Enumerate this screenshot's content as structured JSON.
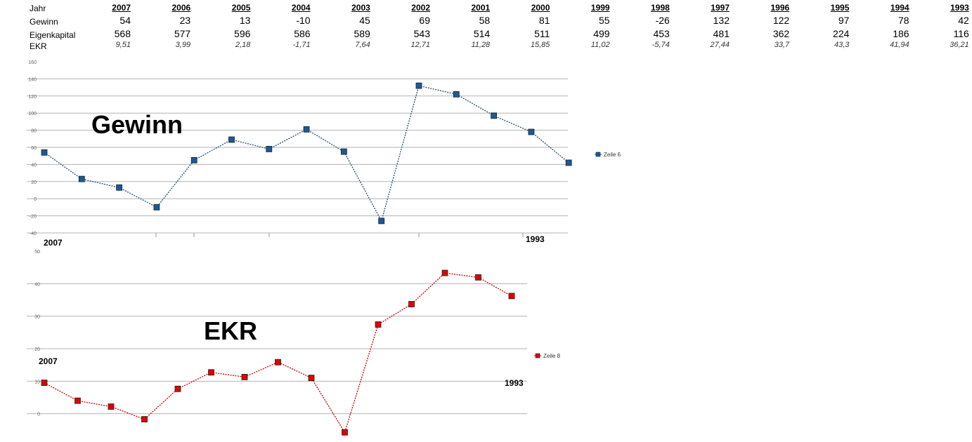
{
  "table": {
    "label_year": "Jahr",
    "label_profit": "Gewinn",
    "label_equity": "Eigenkapital",
    "label_ekr": "EKR",
    "years": [
      "2007",
      "2006",
      "2005",
      "2004",
      "2003",
      "2002",
      "2001",
      "2000",
      "1999",
      "1998",
      "1997",
      "1996",
      "1995",
      "1994",
      "1993"
    ],
    "profit": [
      "54",
      "23",
      "13",
      "-10",
      "45",
      "69",
      "58",
      "81",
      "55",
      "-26",
      "132",
      "122",
      "97",
      "78",
      "42"
    ],
    "equity": [
      "568",
      "577",
      "596",
      "586",
      "589",
      "543",
      "514",
      "511",
      "499",
      "453",
      "481",
      "362",
      "224",
      "186",
      "116"
    ],
    "ekr": [
      "9,51",
      "3,99",
      "2,18",
      "-1,71",
      "7,64",
      "12,71",
      "11,28",
      "15,85",
      "11,02",
      "-5,74",
      "27,44",
      "33,7",
      "43,3",
      "41,94",
      "36,21"
    ]
  },
  "chart_data": [
    {
      "type": "line",
      "title": "Gewinn",
      "color": "#1f4e79",
      "marker_fill": "#1a5a99",
      "x": [
        "2007",
        "2006",
        "2005",
        "2004",
        "2003",
        "2002",
        "2001",
        "2000",
        "1999",
        "1998",
        "1997",
        "1996",
        "1995",
        "1994",
        "1993"
      ],
      "values": [
        54,
        23,
        13,
        -10,
        45,
        69,
        58,
        81,
        55,
        -26,
        132,
        122,
        97,
        78,
        42
      ],
      "ylim": [
        -40,
        160
      ],
      "yticks": [
        "160",
        "140",
        "120",
        "100",
        "80",
        "60",
        "40",
        "20",
        "0",
        "-20",
        "-40"
      ],
      "first_label": "2007",
      "last_label": "1993",
      "legend_text": "Zeile 6",
      "grid": true
    },
    {
      "type": "line",
      "title": "EKR",
      "color": "#cc0000",
      "marker_fill": "#e00000",
      "x": [
        "2007",
        "2006",
        "2005",
        "2004",
        "2003",
        "2002",
        "2001",
        "2000",
        "1999",
        "1998",
        "1997",
        "1996",
        "1995",
        "1994",
        "1993"
      ],
      "values": [
        9.51,
        3.99,
        2.18,
        -1.71,
        7.64,
        12.71,
        11.28,
        15.85,
        11.02,
        -5.74,
        27.44,
        33.7,
        43.3,
        41.94,
        36.21
      ],
      "ylim": [
        -10,
        50
      ],
      "yticks": [
        "50",
        "40",
        "30",
        "20",
        "10",
        "0"
      ],
      "first_label": "2007",
      "last_label": "1993",
      "legend_text": "Zeile 8",
      "grid": true
    }
  ]
}
